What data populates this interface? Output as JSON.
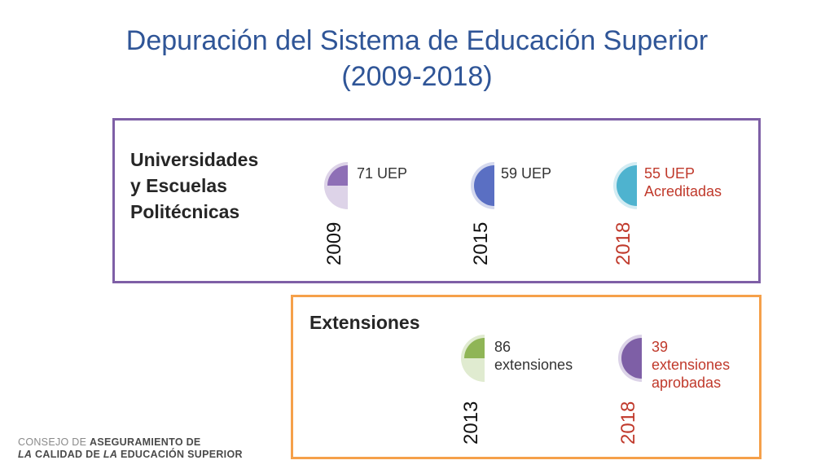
{
  "title_line1": "Depuración del Sistema de Educación Superior",
  "title_line2": "(2009-2018)",
  "universities": {
    "label_lines": [
      "Universidades",
      "y Escuelas",
      "Politécnicas"
    ],
    "items": [
      {
        "year": "2009",
        "value_lines": [
          "71 UEP"
        ],
        "fill_color": "#8e6fb6",
        "track_color": "#ddd3e8",
        "fill_fraction": 0.25,
        "highlight": false
      },
      {
        "year": "2015",
        "value_lines": [
          "59 UEP"
        ],
        "fill_color": "#5a6fc3",
        "track_color": "#d5d9ee",
        "fill_fraction": 0.5,
        "highlight": false
      },
      {
        "year": "2018",
        "value_lines": [
          "55 UEP",
          "Acreditadas"
        ],
        "fill_color": "#4eb3cf",
        "track_color": "#d3ecf3",
        "fill_fraction": 0.5,
        "highlight": true
      }
    ]
  },
  "extensions": {
    "label": "Extensiones",
    "items": [
      {
        "year": "2013",
        "value_lines": [
          "86",
          "extensiones"
        ],
        "fill_color": "#8fb556",
        "track_color": "#e0ebd0",
        "fill_fraction": 0.25,
        "highlight": false
      },
      {
        "year": "2018",
        "value_lines": [
          "39",
          "extensiones",
          "aprobadas"
        ],
        "fill_color": "#7e5fa6",
        "track_color": "#dcd3e8",
        "fill_fraction": 0.5,
        "highlight": true
      }
    ]
  },
  "footer": {
    "line1_light": "CONSEJO DE ",
    "line1_bold": "ASEGURAMIENTO DE",
    "line2_a": "LA",
    "line2_b": " CALIDAD DE ",
    "line2_c": "LA",
    "line2_d": " EDUCACIÓN SUPERIOR"
  }
}
